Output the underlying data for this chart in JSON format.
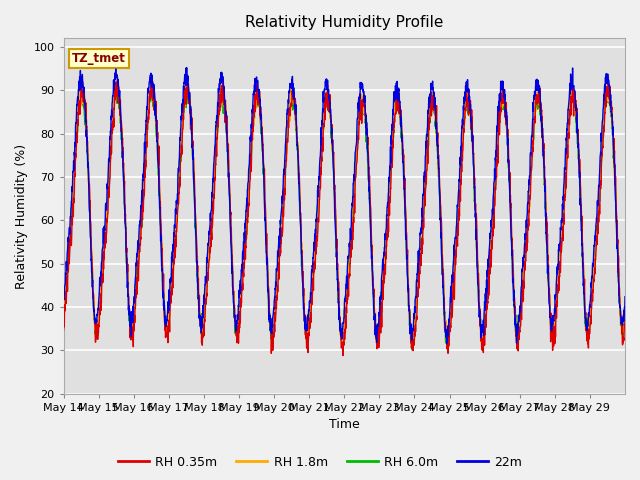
{
  "title": "Relativity Humidity Profile",
  "xlabel": "Time",
  "ylabel": "Relativity Humidity (%)",
  "ylim": [
    20,
    102
  ],
  "yticks": [
    20,
    30,
    40,
    50,
    60,
    70,
    80,
    90,
    100
  ],
  "series_colors": {
    "RH 0.35m": "#dd0000",
    "RH 1.8m": "#ffaa00",
    "RH 6.0m": "#00bb00",
    "22m": "#0000dd"
  },
  "legend_label": "TZ_tmet",
  "fig_facecolor": "#f0f0f0",
  "plot_facecolor": "#e0e0e0",
  "num_days": 16,
  "start_day": 14,
  "points_per_day": 144,
  "x_tick_labels": [
    "May 14",
    "May 15",
    "May 16",
    "May 17",
    "May 18",
    "May 19",
    "May 20",
    "May 21",
    "May 22",
    "May 23",
    "May 24",
    "May 25",
    "May 26",
    "May 27",
    "May 28",
    "May 29"
  ],
  "figsize": [
    6.4,
    4.8
  ],
  "dpi": 100
}
